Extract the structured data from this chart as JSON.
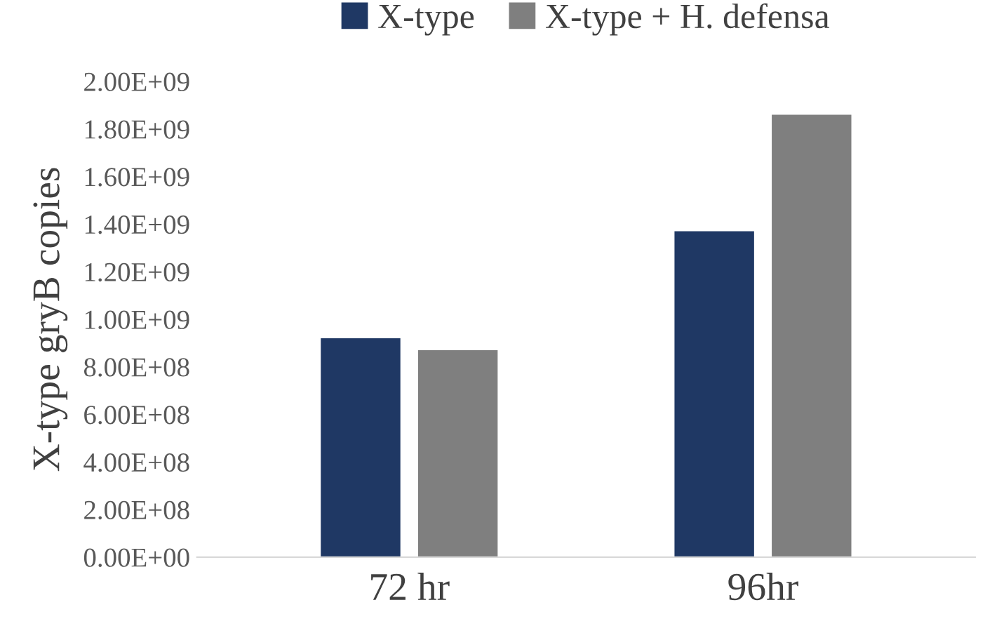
{
  "chart_data": {
    "type": "bar",
    "ylabel": "X-type gryB copies",
    "categories": [
      "72 hr",
      "96hr"
    ],
    "series": [
      {
        "name": "X-type",
        "color": "#1f3864",
        "values": [
          920000000,
          1370000000
        ]
      },
      {
        "name": "X-type + H. defensa",
        "color": "#7f7f7f",
        "values": [
          870000000,
          1860000000
        ]
      }
    ],
    "ylim": [
      0,
      2000000000
    ],
    "yticks": [
      {
        "value": 0,
        "label": "0.00E+00"
      },
      {
        "value": 200000000,
        "label": "2.00E+08"
      },
      {
        "value": 400000000,
        "label": "4.00E+08"
      },
      {
        "value": 600000000,
        "label": "6.00E+08"
      },
      {
        "value": 800000000,
        "label": "8.00E+08"
      },
      {
        "value": 1000000000,
        "label": "1.00E+09"
      },
      {
        "value": 1200000000,
        "label": "1.20E+09"
      },
      {
        "value": 1400000000,
        "label": "1.40E+09"
      },
      {
        "value": 1600000000,
        "label": "1.60E+09"
      },
      {
        "value": 1800000000,
        "label": "1.80E+09"
      },
      {
        "value": 2000000000,
        "label": "2.00E+09"
      }
    ],
    "grid": false,
    "legend": "top"
  }
}
